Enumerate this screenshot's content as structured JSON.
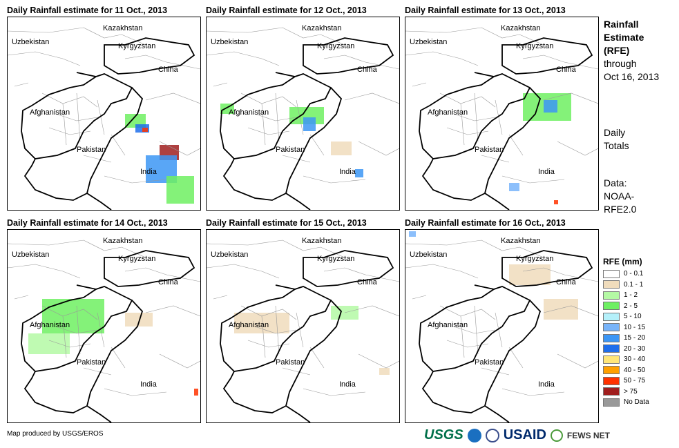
{
  "panels": [
    {
      "title": "Daily Rainfall estimate for 11 Oct., 2013"
    },
    {
      "title": "Daily Rainfall estimate for 12 Oct., 2013"
    },
    {
      "title": "Daily Rainfall estimate for 13 Oct., 2013"
    },
    {
      "title": "Daily Rainfall estimate for 14 Oct., 2013"
    },
    {
      "title": "Daily Rainfall estimate for 15 Oct., 2013"
    },
    {
      "title": "Daily Rainfall estimate for 16 Oct., 2013"
    }
  ],
  "map_labels": {
    "kazakhstan": "Kazakhstan",
    "uzbekistan": "Uzbekistan",
    "kyrgyzstan": "Kyrgyzstan",
    "china": "China",
    "afghanistan": "Afghanistan",
    "pakistan": "Pakistan",
    "india": "India"
  },
  "side": {
    "title1": "Rainfall",
    "title2": "Estimate",
    "title3": "(RFE)",
    "through": "through",
    "date": "Oct 16, 2013",
    "daily1": "Daily",
    "daily2": "Totals",
    "data1": "Data:",
    "data2": "NOAA-",
    "data3": "RFE2.0"
  },
  "legend": {
    "title": "RFE (mm)",
    "items": [
      {
        "label": "0 - 0.1",
        "color": "#ffffff"
      },
      {
        "label": "0.1 - 1",
        "color": "#f0dcbc"
      },
      {
        "label": "1 - 2",
        "color": "#b4f9a4"
      },
      {
        "label": "2 - 5",
        "color": "#6ef062"
      },
      {
        "label": "5 - 10",
        "color": "#b4f0fa"
      },
      {
        "label": "10 - 15",
        "color": "#78b4fa"
      },
      {
        "label": "15 - 20",
        "color": "#3c96f5"
      },
      {
        "label": "20 - 30",
        "color": "#1e6eeb"
      },
      {
        "label": "30 - 40",
        "color": "#ffe678"
      },
      {
        "label": "40 - 50",
        "color": "#ffa000"
      },
      {
        "label": "50 - 75",
        "color": "#ff3200"
      },
      {
        "label": "> 75",
        "color": "#a01e1e"
      },
      {
        "label": "No Data",
        "color": "#999999"
      }
    ]
  },
  "footer": {
    "credit": "Map produced by USGS/EROS",
    "usgs": "USGS",
    "usaid": "USAID",
    "fews": "FEWS NET"
  }
}
